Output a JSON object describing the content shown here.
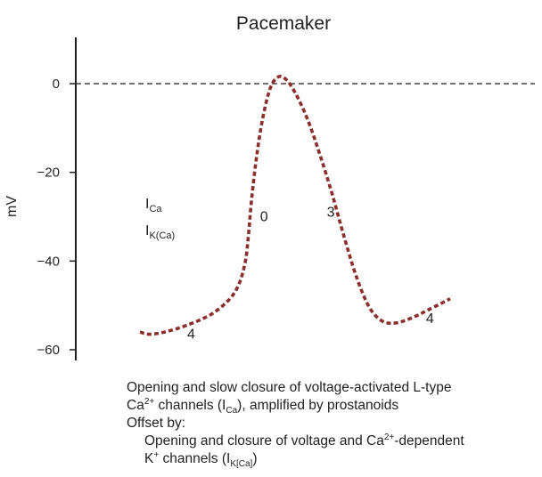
{
  "chart_data": {
    "type": "line",
    "title": "Pacemaker",
    "ylabel": "mV",
    "xlabel": "",
    "ylim": [
      -62,
      10
    ],
    "y_ticks": [
      0,
      -20,
      -40,
      -60
    ],
    "y_tick_labels": [
      "0",
      "−20",
      "−40",
      "−60"
    ],
    "x_ticks": [],
    "reference_line": {
      "y": 0,
      "style": "dashed"
    },
    "series": [
      {
        "color": "#8b2e2e",
        "style": "dotted",
        "points": [
          {
            "t": 0.0,
            "mV": -56.0
          },
          {
            "t": 0.03,
            "mV": -56.5
          },
          {
            "t": 0.08,
            "mV": -56.0
          },
          {
            "t": 0.15,
            "mV": -54.5
          },
          {
            "t": 0.23,
            "mV": -52.0
          },
          {
            "t": 0.29,
            "mV": -48.5
          },
          {
            "t": 0.32,
            "mV": -45.0
          },
          {
            "t": 0.34,
            "mV": -40.0
          },
          {
            "t": 0.35,
            "mV": -34.0
          },
          {
            "t": 0.36,
            "mV": -26.0
          },
          {
            "t": 0.375,
            "mV": -17.0
          },
          {
            "t": 0.395,
            "mV": -8.0
          },
          {
            "t": 0.42,
            "mV": -1.0
          },
          {
            "t": 0.445,
            "mV": 1.5
          },
          {
            "t": 0.47,
            "mV": 1.0
          },
          {
            "t": 0.5,
            "mV": -2.0
          },
          {
            "t": 0.54,
            "mV": -8.0
          },
          {
            "t": 0.58,
            "mV": -16.0
          },
          {
            "t": 0.62,
            "mV": -25.0
          },
          {
            "t": 0.66,
            "mV": -35.0
          },
          {
            "t": 0.7,
            "mV": -44.0
          },
          {
            "t": 0.74,
            "mV": -50.5
          },
          {
            "t": 0.78,
            "mV": -53.5
          },
          {
            "t": 0.82,
            "mV": -54.0
          },
          {
            "t": 0.87,
            "mV": -53.0
          },
          {
            "t": 0.93,
            "mV": -51.0
          },
          {
            "t": 1.0,
            "mV": -48.5
          }
        ]
      }
    ],
    "annotations": [
      {
        "text": "0",
        "t": 0.4,
        "mV": -31.0
      },
      {
        "text": "3",
        "t": 0.615,
        "mV": -30.0
      },
      {
        "text": "4",
        "t": 0.165,
        "mV": -57.5
      },
      {
        "text": "4",
        "t": 0.935,
        "mV": -54.0
      }
    ],
    "current_labels": [
      {
        "main": "I",
        "sub": "Ca"
      },
      {
        "main": "I",
        "sub": "K(Ca)"
      }
    ]
  },
  "caption": {
    "line1": "Opening and slow closure of voltage-activated L-type",
    "line2_ca": "Ca",
    "line2_sup": "2+",
    "line2_mid": " channels (I",
    "line2_sub": "Ca",
    "line2_end": "), amplified by prostanoids",
    "line3": "Offset by:",
    "line4_start": "Opening and closure of voltage and Ca",
    "line4_sup": "2+",
    "line4_end": "-dependent",
    "line5_k": "K",
    "line5_sup": "+",
    "line5_mid": " channels (I",
    "line5_sub": "K[Ca]",
    "line5_end": ")"
  }
}
